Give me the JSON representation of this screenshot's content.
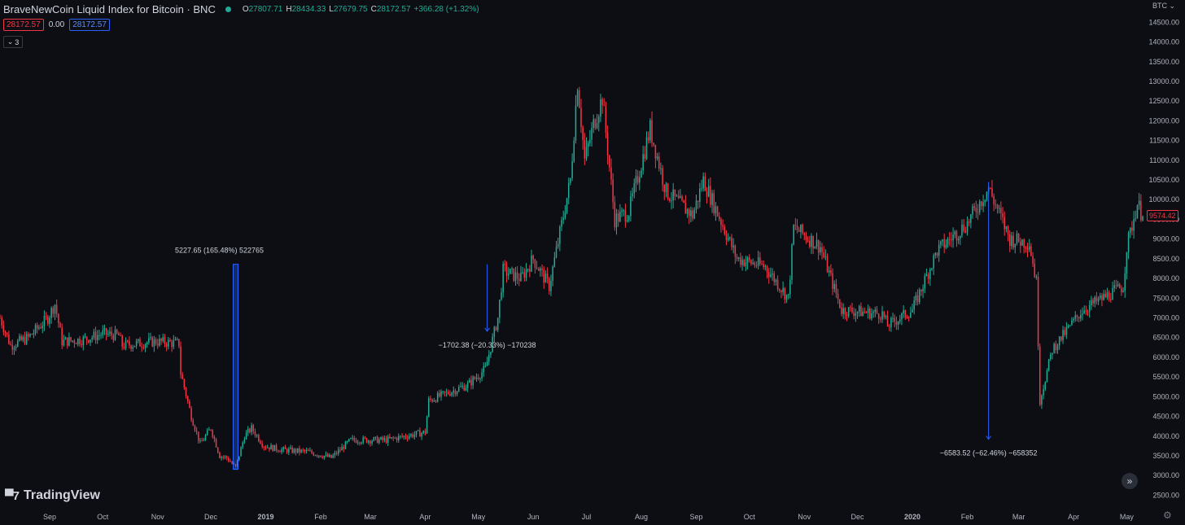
{
  "header": {
    "symbol_title": "BraveNewCoin Liquid Index for Bitcoin · BNC",
    "ohlc": [
      {
        "key": "O",
        "value": "27807.71"
      },
      {
        "key": "H",
        "value": "28434.33"
      },
      {
        "key": "L",
        "value": "27679.75"
      },
      {
        "key": "C",
        "value": "28172.57"
      }
    ],
    "change": "+366.28 (+1.32%)",
    "bid": "28172.57",
    "spread": "0.00",
    "ask": "28172.57",
    "collapse_count": "3"
  },
  "currency_label": "BTC",
  "last_price_tag": "9574.42",
  "logo_text": "TradingView",
  "colors": {
    "up": "#22ab94",
    "down": "#f23645",
    "measure": "#2962ff",
    "background": "#0c0e14"
  },
  "chart_data": {
    "type": "candlestick",
    "title": "BraveNewCoin Liquid Index for Bitcoin · BNC",
    "ylim": [
      2260,
      14900
    ],
    "y_ticks": [
      2500,
      3000,
      3500,
      4000,
      4500,
      5000,
      5500,
      6000,
      6500,
      7000,
      7500,
      8000,
      8500,
      9000,
      9500,
      10000,
      10500,
      11000,
      11500,
      12000,
      12500,
      13000,
      13500,
      14000,
      14500
    ],
    "x_labels": [
      {
        "label": "Sep",
        "date": "2018-09-01",
        "bold": false
      },
      {
        "label": "Oct",
        "date": "2018-10-01",
        "bold": false
      },
      {
        "label": "Nov",
        "date": "2018-11-01",
        "bold": false
      },
      {
        "label": "Dec",
        "date": "2018-12-01",
        "bold": false
      },
      {
        "label": "2019",
        "date": "2019-01-01",
        "bold": true
      },
      {
        "label": "Feb",
        "date": "2019-02-01",
        "bold": false
      },
      {
        "label": "Mar",
        "date": "2019-03-01",
        "bold": false
      },
      {
        "label": "Apr",
        "date": "2019-04-01",
        "bold": false
      },
      {
        "label": "May",
        "date": "2019-05-01",
        "bold": false
      },
      {
        "label": "Jun",
        "date": "2019-06-01",
        "bold": false
      },
      {
        "label": "Jul",
        "date": "2019-07-01",
        "bold": false
      },
      {
        "label": "Aug",
        "date": "2019-08-01",
        "bold": false
      },
      {
        "label": "Sep",
        "date": "2019-09-01",
        "bold": false
      },
      {
        "label": "Oct",
        "date": "2019-10-01",
        "bold": false
      },
      {
        "label": "Nov",
        "date": "2019-11-01",
        "bold": false
      },
      {
        "label": "Dec",
        "date": "2019-12-01",
        "bold": false
      },
      {
        "label": "2020",
        "date": "2020-01-01",
        "bold": true
      },
      {
        "label": "Feb",
        "date": "2020-02-01",
        "bold": false
      },
      {
        "label": "Mar",
        "date": "2020-03-01",
        "bold": false
      },
      {
        "label": "Apr",
        "date": "2020-04-01",
        "bold": false
      },
      {
        "label": "May",
        "date": "2020-05-01",
        "bold": false
      }
    ],
    "x_range": [
      "2018-08-04",
      "2020-05-10"
    ],
    "price_path": [
      [
        "2018-08-04",
        7000
      ],
      [
        "2018-08-10",
        6300
      ],
      [
        "2018-08-20",
        6500
      ],
      [
        "2018-08-31",
        7000
      ],
      [
        "2018-09-04",
        7350
      ],
      [
        "2018-09-08",
        6400
      ],
      [
        "2018-09-20",
        6450
      ],
      [
        "2018-10-01",
        6600
      ],
      [
        "2018-10-10",
        6550
      ],
      [
        "2018-10-12",
        6300
      ],
      [
        "2018-10-31",
        6400
      ],
      [
        "2018-11-13",
        6350
      ],
      [
        "2018-11-14",
        5600
      ],
      [
        "2018-11-20",
        4500
      ],
      [
        "2018-11-25",
        3800
      ],
      [
        "2018-12-01",
        4200
      ],
      [
        "2018-12-06",
        3500
      ],
      [
        "2018-12-10",
        3450
      ],
      [
        "2018-12-15",
        3200
      ],
      [
        "2018-12-20",
        4000
      ],
      [
        "2018-12-24",
        4200
      ],
      [
        "2018-12-31",
        3750
      ],
      [
        "2019-01-10",
        3650
      ],
      [
        "2019-01-25",
        3600
      ],
      [
        "2019-02-07",
        3450
      ],
      [
        "2019-02-18",
        3900
      ],
      [
        "2019-03-10",
        3900
      ],
      [
        "2019-04-01",
        4100
      ],
      [
        "2019-04-03",
        4900
      ],
      [
        "2019-04-25",
        5300
      ],
      [
        "2019-05-05",
        5700
      ],
      [
        "2019-05-12",
        7000
      ],
      [
        "2019-05-15",
        8200
      ],
      [
        "2019-05-25",
        8000
      ],
      [
        "2019-06-01",
        8500
      ],
      [
        "2019-06-10",
        7800
      ],
      [
        "2019-06-22",
        10500
      ],
      [
        "2019-06-26",
        13000
      ],
      [
        "2019-06-30",
        11000
      ],
      [
        "2019-07-05",
        11900
      ],
      [
        "2019-07-10",
        12600
      ],
      [
        "2019-07-17",
        9500
      ],
      [
        "2019-07-25",
        9700
      ],
      [
        "2019-08-06",
        11800
      ],
      [
        "2019-08-15",
        10200
      ],
      [
        "2019-08-30",
        9600
      ],
      [
        "2019-09-05",
        10500
      ],
      [
        "2019-09-24",
        8500
      ],
      [
        "2019-10-10",
        8300
      ],
      [
        "2019-10-23",
        7500
      ],
      [
        "2019-10-26",
        9300
      ],
      [
        "2019-11-10",
        8800
      ],
      [
        "2019-11-22",
        7200
      ],
      [
        "2019-12-15",
        7100
      ],
      [
        "2019-12-18",
        6800
      ],
      [
        "2020-01-01",
        7200
      ],
      [
        "2020-01-15",
        8700
      ],
      [
        "2020-02-01",
        9400
      ],
      [
        "2020-02-13",
        10300
      ],
      [
        "2020-02-25",
        9000
      ],
      [
        "2020-03-07",
        8900
      ],
      [
        "2020-03-11",
        7900
      ],
      [
        "2020-03-13",
        4900
      ],
      [
        "2020-03-20",
        6200
      ],
      [
        "2020-04-06",
        7200
      ],
      [
        "2020-04-29",
        7800
      ],
      [
        "2020-05-01",
        8800
      ],
      [
        "2020-05-07",
        9900
      ],
      [
        "2020-05-10",
        9574.42
      ]
    ],
    "measurements": [
      {
        "label": "5227.65 (165.48%) 522765",
        "date": "2018-12-15",
        "from": 3160,
        "to": 8360,
        "direction": "up"
      },
      {
        "label": "−1702.38 (−20.33%) −170238",
        "date": "2019-05-06",
        "from": 8360,
        "to": 6660,
        "direction": "down"
      },
      {
        "label": "−6583.52 (−62.46%) −658352",
        "date": "2020-02-13",
        "from": 10450,
        "to": 3920,
        "direction": "down"
      }
    ]
  }
}
